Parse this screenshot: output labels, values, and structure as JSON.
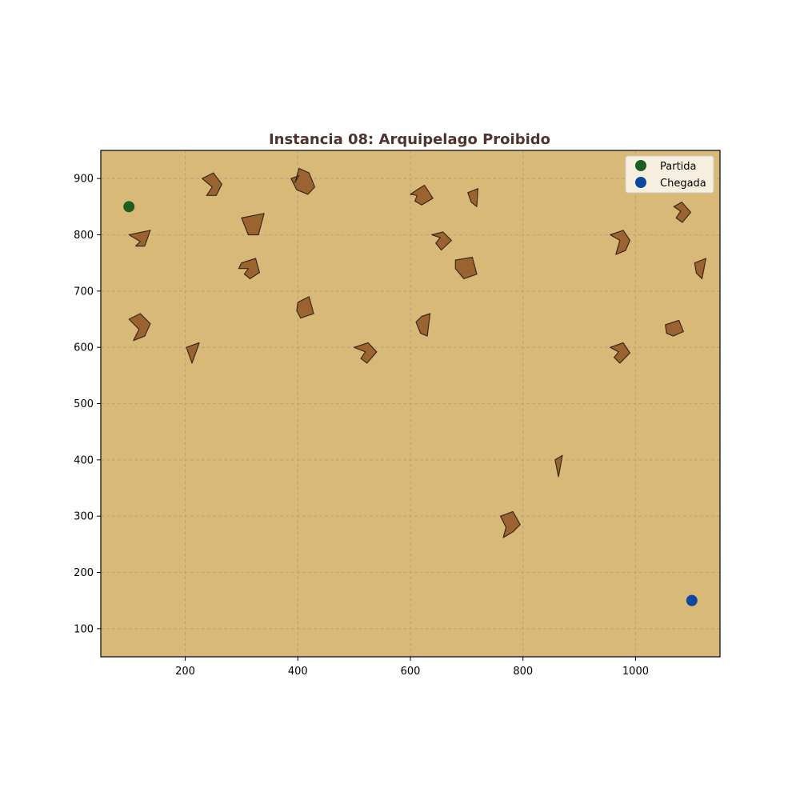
{
  "chart_data": {
    "type": "scatter",
    "title": "Instancia 08: Arquipelago Proibido",
    "xlabel": "",
    "ylabel": "",
    "xlim": [
      50,
      1150
    ],
    "ylim": [
      50,
      950
    ],
    "xticks": [
      200,
      400,
      600,
      800,
      1000
    ],
    "yticks": [
      100,
      200,
      300,
      400,
      500,
      600,
      700,
      800,
      900
    ],
    "grid": true,
    "legend_position": "top-right",
    "series": [
      {
        "name": "Partida",
        "points": [
          [
            100,
            850
          ]
        ],
        "color": "#1b5e20"
      },
      {
        "name": "Chegada",
        "points": [
          [
            1100,
            150
          ]
        ],
        "color": "#0d47a1"
      }
    ],
    "obstacles": [
      [
        [
          230,
          900
        ],
        [
          250,
          910
        ],
        [
          265,
          890
        ],
        [
          255,
          870
        ],
        [
          238,
          870
        ],
        [
          248,
          885
        ]
      ],
      [
        [
          402,
          918
        ],
        [
          420,
          910
        ],
        [
          430,
          885
        ],
        [
          418,
          872
        ],
        [
          398,
          880
        ],
        [
          388,
          900
        ],
        [
          402,
          905
        ],
        [
          395,
          893
        ]
      ],
      [
        [
          300,
          830
        ],
        [
          340,
          838
        ],
        [
          330,
          800
        ],
        [
          312,
          800
        ]
      ],
      [
        [
          100,
          800
        ],
        [
          138,
          808
        ],
        [
          128,
          780
        ],
        [
          112,
          780
        ],
        [
          120,
          788
        ]
      ],
      [
        [
          295,
          740
        ],
        [
          300,
          750
        ],
        [
          325,
          758
        ],
        [
          332,
          733
        ],
        [
          315,
          722
        ],
        [
          305,
          730
        ],
        [
          312,
          740
        ]
      ],
      [
        [
          600,
          872
        ],
        [
          612,
          880
        ],
        [
          625,
          888
        ],
        [
          640,
          865
        ],
        [
          620,
          853
        ],
        [
          608,
          860
        ],
        [
          612,
          870
        ]
      ],
      [
        [
          702,
          875
        ],
        [
          720,
          882
        ],
        [
          718,
          850
        ],
        [
          708,
          858
        ]
      ],
      [
        [
          638,
          800
        ],
        [
          658,
          805
        ],
        [
          673,
          790
        ],
        [
          655,
          773
        ],
        [
          645,
          785
        ],
        [
          653,
          795
        ]
      ],
      [
        [
          680,
          755
        ],
        [
          710,
          760
        ],
        [
          718,
          730
        ],
        [
          695,
          722
        ],
        [
          680,
          740
        ]
      ],
      [
        [
          620,
          655
        ],
        [
          635,
          660
        ],
        [
          630,
          620
        ],
        [
          618,
          625
        ],
        [
          610,
          645
        ]
      ],
      [
        [
          400,
          680
        ],
        [
          420,
          690
        ],
        [
          428,
          660
        ],
        [
          405,
          652
        ],
        [
          398,
          665
        ]
      ],
      [
        [
          500,
          600
        ],
        [
          525,
          608
        ],
        [
          540,
          592
        ],
        [
          523,
          572
        ],
        [
          512,
          580
        ],
        [
          520,
          592
        ]
      ],
      [
        [
          100,
          650
        ],
        [
          120,
          660
        ],
        [
          138,
          642
        ],
        [
          128,
          620
        ],
        [
          108,
          612
        ],
        [
          118,
          632
        ]
      ],
      [
        [
          202,
          600
        ],
        [
          225,
          608
        ],
        [
          212,
          572
        ]
      ],
      [
        [
          760,
          300
        ],
        [
          782,
          308
        ],
        [
          795,
          285
        ],
        [
          782,
          272
        ],
        [
          765,
          262
        ],
        [
          770,
          280
        ],
        [
          765,
          290
        ]
      ],
      [
        [
          857,
          400
        ],
        [
          870,
          408
        ],
        [
          863,
          370
        ]
      ],
      [
        [
          955,
          800
        ],
        [
          978,
          808
        ],
        [
          990,
          790
        ],
        [
          982,
          772
        ],
        [
          965,
          765
        ],
        [
          972,
          790
        ]
      ],
      [
        [
          1068,
          850
        ],
        [
          1082,
          858
        ],
        [
          1098,
          840
        ],
        [
          1083,
          822
        ],
        [
          1072,
          830
        ],
        [
          1080,
          842
        ]
      ],
      [
        [
          1105,
          750
        ],
        [
          1125,
          758
        ],
        [
          1118,
          722
        ],
        [
          1108,
          732
        ]
      ],
      [
        [
          955,
          600
        ],
        [
          978,
          608
        ],
        [
          990,
          590
        ],
        [
          972,
          572
        ],
        [
          962,
          582
        ],
        [
          970,
          592
        ]
      ],
      [
        [
          1053,
          640
        ],
        [
          1077,
          648
        ],
        [
          1085,
          628
        ],
        [
          1067,
          620
        ],
        [
          1055,
          625
        ]
      ]
    ]
  },
  "legend": {
    "start_label": "Partida",
    "end_label": "Chegada"
  },
  "colors": {
    "plot_background": "#d8b978",
    "island_fill": "#9b6330",
    "title_color": "#4e342e"
  }
}
